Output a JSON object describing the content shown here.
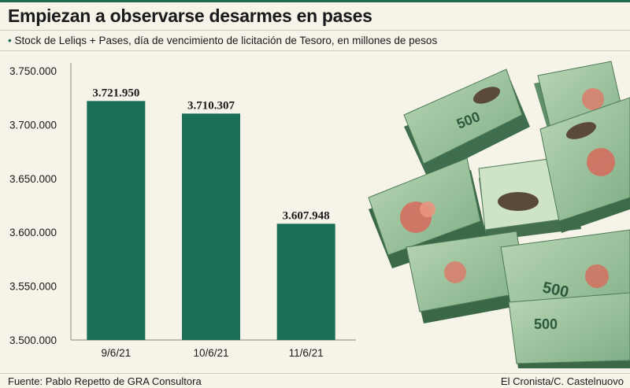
{
  "header": {
    "title": "Empiezan a observarse desarmes en pases",
    "subtitle_bullet": "•",
    "subtitle": "Stock de Leliqs + Pases, día de vencimiento de licitación de Tesoro, en millones de pesos"
  },
  "chart_data": {
    "type": "bar",
    "title": "Empiezan a observarse desarmes en pases",
    "subtitle": "Stock de Leliqs + Pases, día de vencimiento de licitación de Tesoro, en millones de pesos",
    "categories": [
      "9/6/21",
      "10/6/21",
      "11/6/21"
    ],
    "values": [
      3721950,
      3710307,
      3607948
    ],
    "value_labels": [
      "3.721.950",
      "3.710.307",
      "3.607.948"
    ],
    "yticks": [
      3500000,
      3550000,
      3600000,
      3650000,
      3700000,
      3750000
    ],
    "ytick_labels": [
      "3.500.000",
      "3.550.000",
      "3.600.000",
      "3.650.000",
      "3.700.000",
      "3.750.000"
    ],
    "ylim": [
      3500000,
      3750000
    ],
    "xlabel": "",
    "ylabel": "",
    "grid": false,
    "bar_color": "#1b6e58"
  },
  "illustration": {
    "banknote_label": "500"
  },
  "footer": {
    "source": "Fuente: Pablo Repetto de GRA Consultora",
    "credit": "El Cronista/C. Castelnuovo"
  }
}
